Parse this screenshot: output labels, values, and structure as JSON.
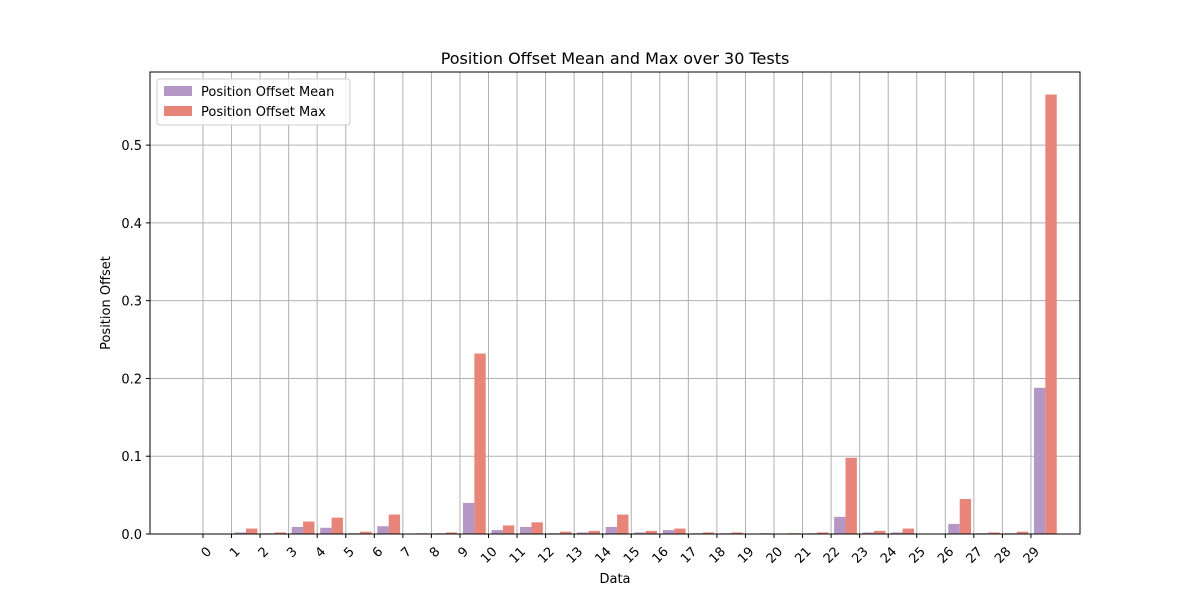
{
  "chart_data": {
    "type": "bar",
    "title": "Position Offset Mean and Max over 30 Tests",
    "xlabel": "Data",
    "ylabel": "Position Offset",
    "categories": [
      "0",
      "1",
      "2",
      "3",
      "4",
      "5",
      "6",
      "7",
      "8",
      "9",
      "10",
      "11",
      "12",
      "13",
      "14",
      "15",
      "16",
      "17",
      "18",
      "19",
      "20",
      "21",
      "22",
      "23",
      "24",
      "25",
      "26",
      "27",
      "28",
      "29"
    ],
    "series": [
      {
        "name": "Position Offset Mean",
        "color": "#b497c4",
        "values": [
          0.0,
          0.002,
          0.001,
          0.009,
          0.008,
          0.001,
          0.01,
          0.0005,
          0.001,
          0.04,
          0.005,
          0.009,
          0.001,
          0.002,
          0.009,
          0.002,
          0.005,
          0.001,
          0.001,
          0.0005,
          0.0005,
          0.001,
          0.022,
          0.002,
          0.002,
          0.0,
          0.013,
          0.001,
          0.001,
          0.188
        ]
      },
      {
        "name": "Position Offset Max",
        "color": "#e8857a",
        "values": [
          0.0,
          0.007,
          0.002,
          0.016,
          0.021,
          0.003,
          0.025,
          0.001,
          0.002,
          0.232,
          0.011,
          0.015,
          0.003,
          0.004,
          0.025,
          0.004,
          0.007,
          0.002,
          0.002,
          0.001,
          0.001,
          0.002,
          0.098,
          0.004,
          0.007,
          0.0,
          0.045,
          0.002,
          0.003,
          0.565
        ]
      }
    ],
    "yticks": [
      "0.0",
      "0.1",
      "0.2",
      "0.3",
      "0.4",
      "0.5"
    ],
    "ylim": [
      0,
      0.594
    ],
    "grid": true,
    "legend_position": "top-left"
  }
}
